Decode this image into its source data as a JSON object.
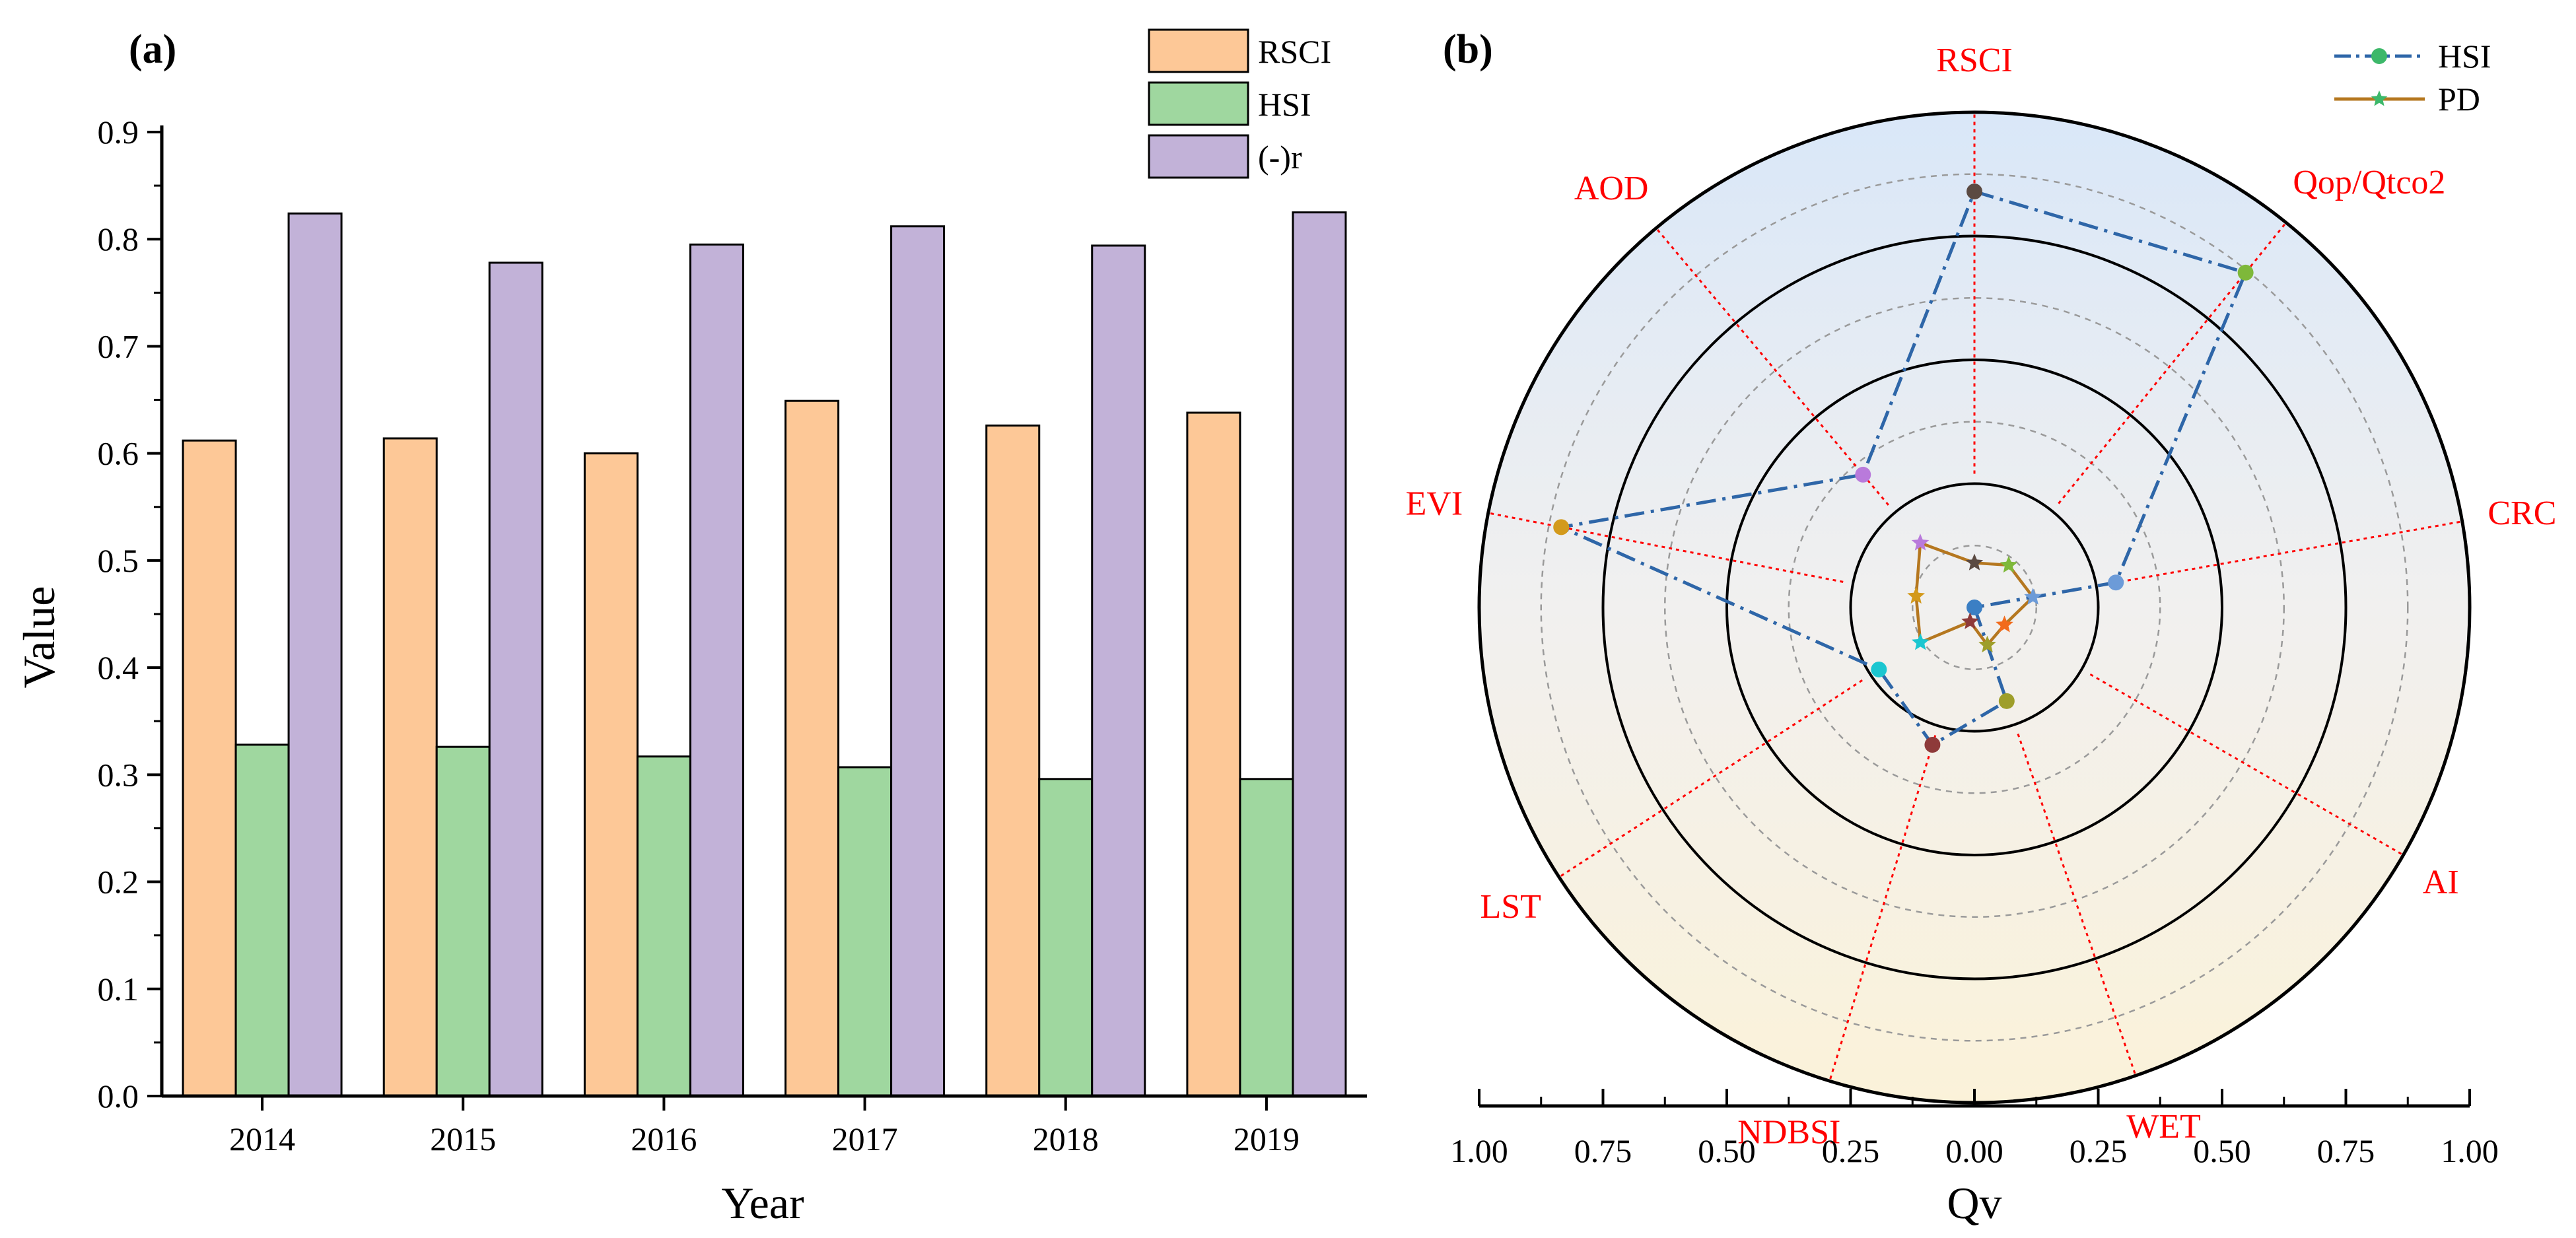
{
  "chart_data": [
    {
      "panel": "(a)",
      "type": "bar",
      "categories": [
        "2014",
        "2015",
        "2016",
        "2017",
        "2018",
        "2019"
      ],
      "series": [
        {
          "name": "RSCI",
          "color": "#FDC897",
          "values": [
            0.612,
            0.614,
            0.6,
            0.649,
            0.626,
            0.638
          ]
        },
        {
          "name": "HSI",
          "color": "#9FD79F",
          "values": [
            0.328,
            0.326,
            0.317,
            0.307,
            0.296,
            0.296
          ]
        },
        {
          "name": "(-)r",
          "color": "#C2B2D8",
          "values": [
            0.824,
            0.778,
            0.795,
            0.812,
            0.794,
            0.825
          ]
        }
      ],
      "xlabel": "Year",
      "ylabel": "Value",
      "ylim": [
        0,
        0.9
      ],
      "yticks": [
        "0.0",
        "0.1",
        "0.2",
        "0.3",
        "0.4",
        "0.5",
        "0.6",
        "0.7",
        "0.8",
        "0.9"
      ],
      "legend": "top-right"
    },
    {
      "panel": "(b)",
      "type": "radar",
      "axes": [
        "RSCI",
        "Qop/Qtco2",
        "CRC",
        "AI",
        "WET",
        "NDBSI",
        "LST",
        "EVI",
        "AOD"
      ],
      "axis_angles_deg": [
        90,
        51,
        10,
        -30,
        -71,
        -107,
        -147,
        169,
        130
      ],
      "axis_label_color": "#FF0000",
      "rlim": [
        0,
        1.0
      ],
      "ring_values": [
        0.25,
        0.5,
        0.75
      ],
      "series": [
        {
          "name": "HSI",
          "color": "#2E66A8",
          "line": "dash-dot",
          "marker": "circle",
          "values": [
            0.84,
            0.87,
            0.29,
            0.0,
            0.2,
            0.29,
            0.23,
            0.85,
            0.35
          ],
          "point_colors": [
            "#5B4A42",
            "#7EB83A",
            "#6C9BD8",
            "#3B7FC4",
            "#9E9E2A",
            "#8E3A3A",
            "#1BC6D0",
            "#D39A1C",
            "#B97ADB"
          ]
        },
        {
          "name": "PD",
          "color": "#B5771F",
          "line": "solid",
          "marker": "star",
          "values": [
            0.09,
            0.11,
            0.12,
            0.07,
            0.08,
            0.03,
            0.13,
            0.12,
            0.17
          ],
          "point_colors": [
            "#5B4A42",
            "#7EB83A",
            "#6C9BD8",
            "#F26B1C",
            "#9E9E2A",
            "#8E3A3A",
            "#1BC6D0",
            "#D39A1C",
            "#B97ADB"
          ]
        }
      ],
      "xaxis_label": "Qv",
      "xaxis_ticks": [
        "1.00",
        "0.75",
        "0.50",
        "0.25",
        "0.00",
        "0.25",
        "0.50",
        "0.75",
        "1.00"
      ],
      "legend": "top-right"
    }
  ]
}
